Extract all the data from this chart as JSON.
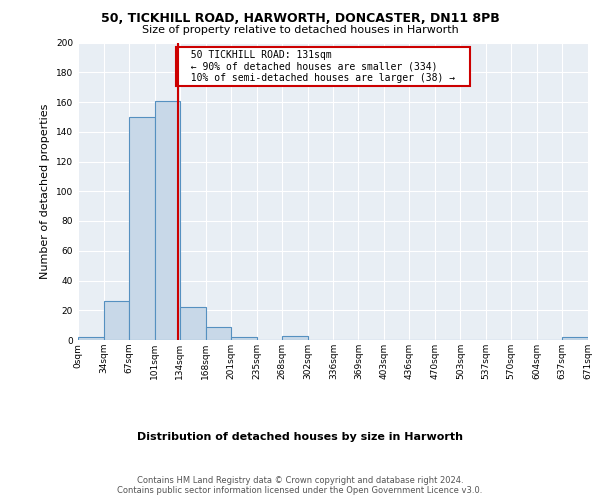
{
  "title_line1": "50, TICKHILL ROAD, HARWORTH, DONCASTER, DN11 8PB",
  "title_line2": "Size of property relative to detached houses in Harworth",
  "xlabel": "Distribution of detached houses by size in Harworth",
  "ylabel": "Number of detached properties",
  "footer_line1": "Contains HM Land Registry data © Crown copyright and database right 2024.",
  "footer_line2": "Contains public sector information licensed under the Open Government Licence v3.0.",
  "property_size": 131,
  "annotation_line1": "50 TICKHILL ROAD: 131sqm",
  "annotation_line2": "← 90% of detached houses are smaller (334)",
  "annotation_line3": "10% of semi-detached houses are larger (38) →",
  "bin_edges": [
    0,
    34,
    67,
    101,
    134,
    168,
    201,
    235,
    268,
    302,
    336,
    369,
    403,
    436,
    470,
    503,
    537,
    570,
    604,
    637,
    671
  ],
  "bin_counts": [
    2,
    26,
    150,
    161,
    22,
    9,
    2,
    0,
    3,
    0,
    0,
    0,
    0,
    0,
    0,
    0,
    0,
    0,
    0,
    2
  ],
  "bar_color": "#c8d8e8",
  "bar_edge_color": "#5590c0",
  "vline_x": 131,
  "vline_color": "#cc0000",
  "background_color": "#e8eef4",
  "ylim": [
    0,
    200
  ],
  "yticks": [
    0,
    20,
    40,
    60,
    80,
    100,
    120,
    140,
    160,
    180,
    200
  ],
  "title_fontsize": 9,
  "subtitle_fontsize": 8,
  "ylabel_fontsize": 8,
  "xlabel_fontsize": 8,
  "tick_fontsize": 6.5,
  "annotation_fontsize": 7,
  "footer_fontsize": 6
}
